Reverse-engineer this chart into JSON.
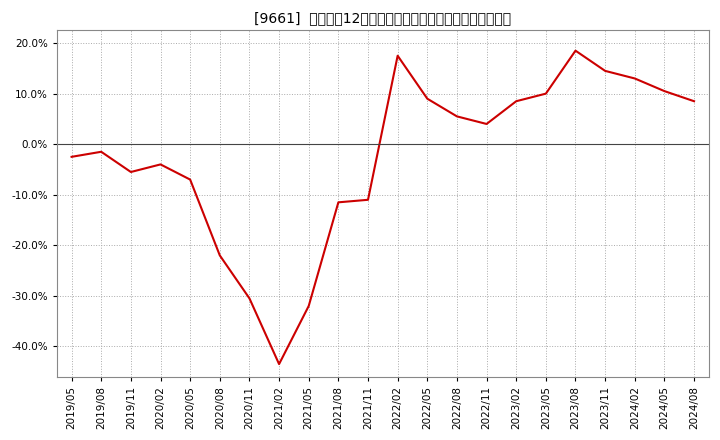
{
  "title": "[9661]  売上高の12か月移動合計の対前年同期増減率の推移",
  "line_color": "#cc0000",
  "background_color": "#ffffff",
  "plot_background_color": "#ffffff",
  "grid_color": "#aaaaaa",
  "x_labels": [
    "2019/05",
    "2019/08",
    "2019/11",
    "2020/02",
    "2020/05",
    "2020/08",
    "2020/11",
    "2021/02",
    "2021/05",
    "2021/08",
    "2021/11",
    "2022/02",
    "2022/05",
    "2022/08",
    "2022/11",
    "2023/02",
    "2023/05",
    "2023/08",
    "2023/11",
    "2024/02",
    "2024/05",
    "2024/08"
  ],
  "y_values": [
    -0.025,
    -0.015,
    -0.055,
    -0.04,
    -0.07,
    -0.22,
    -0.305,
    -0.435,
    -0.32,
    -0.115,
    -0.11,
    0.175,
    0.09,
    0.055,
    0.04,
    0.085,
    0.1,
    0.185,
    0.145,
    0.13,
    0.105,
    0.085
  ],
  "ylim": [
    -0.46,
    0.225
  ],
  "yticks": [
    -0.4,
    -0.3,
    -0.2,
    -0.1,
    0.0,
    0.1,
    0.2
  ],
  "ytick_labels": [
    "-40.0%",
    "-30.0%",
    "-20.0%",
    "-10.0%",
    "0.0%",
    "10.0%",
    "20.0%"
  ],
  "line_width": 1.5,
  "title_fontsize": 10,
  "tick_fontsize": 7.5
}
